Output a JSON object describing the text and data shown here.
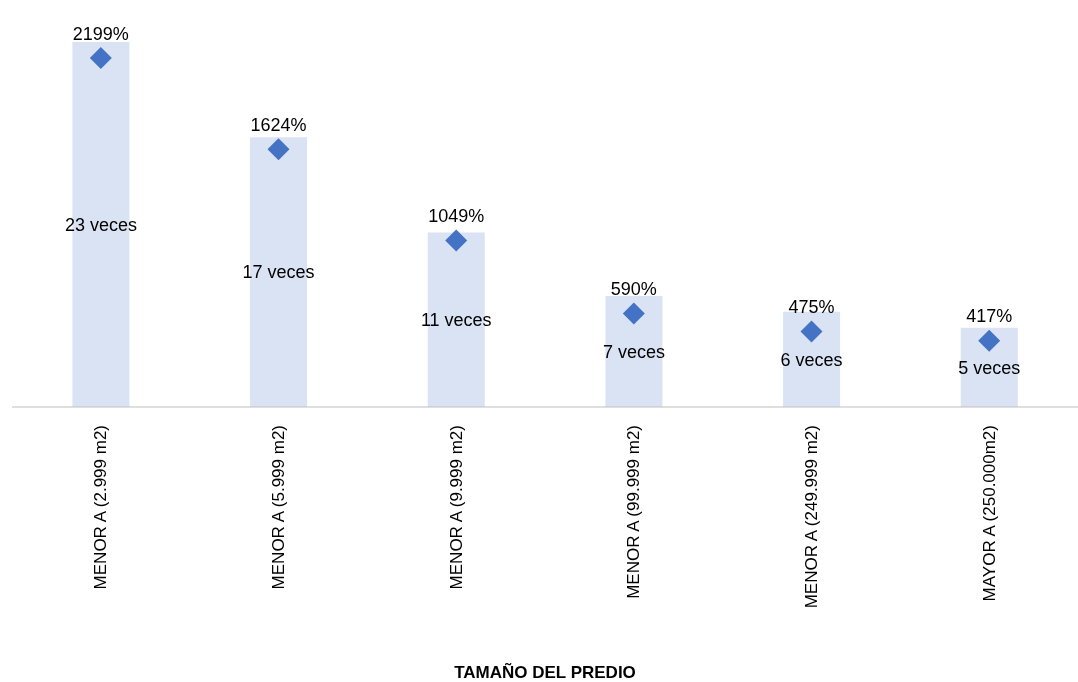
{
  "chart_data": {
    "type": "bar",
    "xlabel": "TAMAÑO DEL PREDIO",
    "categories": [
      "MENOR A (2.999 m2)",
      "MENOR A (5.999 m2)",
      "MENOR A (9.999 m2)",
      "MENOR A (99.999 m2)",
      "MENOR A (249.999 m2)",
      "MAYOR A (250.000m2)"
    ],
    "series": [
      {
        "color": "#dae3f3",
        "values": [
          23,
          17,
          11,
          7,
          6,
          5
        ],
        "value_labels": [
          "23 veces",
          "17 veces",
          "11 veces",
          "7 veces",
          "6 veces",
          "5 veces"
        ]
      },
      {
        "type": "scatter",
        "axis": "y2",
        "marker": "diamond",
        "color": "#4472c4",
        "values": [
          2199,
          1624,
          1049,
          590,
          475,
          417
        ],
        "value_labels": [
          "2199%",
          "1624%",
          "1049%",
          "590%",
          "475%",
          "417%"
        ]
      }
    ],
    "grid": false,
    "legend": false,
    "tick_labels": "x"
  }
}
